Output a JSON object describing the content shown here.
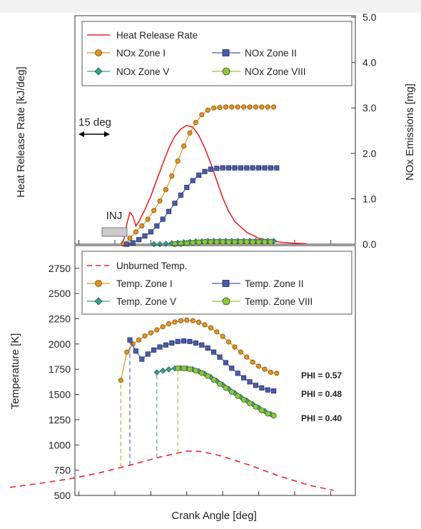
{
  "chart_data": [
    {
      "type": "line",
      "ylabel": "Heat Release Rate [kJ/deg]",
      "y2label": "NOx Emissions [mg]",
      "y2lim": [
        0,
        5.0
      ],
      "y2ticks": [
        "0.0",
        "1.0",
        "2.0",
        "3.0",
        "4.0",
        "5.0"
      ],
      "grid": false,
      "legend_position": "top",
      "annotations": {
        "interval": "15 deg",
        "injection": "INJ"
      },
      "series": [
        {
          "name": "Heat Release Rate",
          "axis": "left-unlabeled",
          "style": "solid",
          "color": "#e8242a",
          "x": [
            -8,
            -7,
            -6,
            -5,
            -4,
            -3,
            -2,
            0,
            2,
            4,
            6,
            8,
            10,
            12,
            14,
            16,
            18,
            20,
            22,
            24,
            26,
            28,
            30,
            34,
            38,
            42,
            46,
            50,
            54
          ],
          "y": [
            0,
            0.1,
            0.45,
            0.7,
            0.62,
            0.4,
            0.5,
            0.76,
            1.06,
            1.42,
            1.78,
            2.12,
            2.38,
            2.54,
            2.62,
            2.58,
            2.4,
            2.12,
            1.78,
            1.4,
            1.02,
            0.72,
            0.5,
            0.26,
            0.13,
            0.07,
            0.04,
            0.02,
            0.01
          ]
        },
        {
          "name": "NOx Zone I",
          "axis": "right",
          "marker": "circle",
          "color": "#e39320",
          "x": [
            -7,
            -5,
            -3,
            -1,
            1,
            3,
            5,
            7,
            9,
            11,
            13,
            15,
            17,
            19,
            21,
            23,
            25,
            27,
            29,
            31,
            33,
            35,
            37,
            39,
            41,
            43
          ],
          "y": [
            0.0,
            0.13,
            0.27,
            0.4,
            0.55,
            0.74,
            0.95,
            1.2,
            1.5,
            1.83,
            2.16,
            2.45,
            2.68,
            2.85,
            2.95,
            3.0,
            3.01,
            3.02,
            3.02,
            3.02,
            3.02,
            3.02,
            3.02,
            3.02,
            3.02,
            3.02
          ]
        },
        {
          "name": "NOx Zone II",
          "axis": "right",
          "marker": "square",
          "color": "#4a5ba8",
          "x": [
            -6,
            -4,
            -2,
            0,
            2,
            4,
            6,
            8,
            10,
            12,
            14,
            16,
            18,
            20,
            22,
            24,
            26,
            28,
            30,
            32,
            34,
            36,
            38,
            40,
            42,
            44
          ],
          "y": [
            0.0,
            0.03,
            0.1,
            0.18,
            0.27,
            0.4,
            0.55,
            0.72,
            0.9,
            1.08,
            1.25,
            1.4,
            1.52,
            1.6,
            1.65,
            1.67,
            1.68,
            1.68,
            1.68,
            1.68,
            1.68,
            1.68,
            1.68,
            1.68,
            1.68,
            1.68
          ]
        },
        {
          "name": "NOx Zone V",
          "axis": "right",
          "marker": "diamond",
          "color": "#3aa08c",
          "x": [
            3,
            5,
            7,
            9,
            11,
            13,
            15,
            17,
            19,
            21,
            23,
            25,
            27,
            29,
            31,
            33,
            35,
            37,
            39,
            41,
            43
          ],
          "y": [
            0.0,
            0.0,
            0.01,
            0.02,
            0.03,
            0.04,
            0.05,
            0.06,
            0.06,
            0.07,
            0.07,
            0.07,
            0.07,
            0.07,
            0.07,
            0.07,
            0.07,
            0.07,
            0.07,
            0.07,
            0.07
          ]
        },
        {
          "name": "NOx Zone VIII",
          "axis": "right",
          "marker": "circle-cross",
          "color": "#8dc63f",
          "x": [
            10,
            12,
            14,
            16,
            18,
            20,
            22,
            24,
            26,
            28,
            30,
            32,
            34,
            36,
            38,
            40,
            42
          ],
          "y": [
            0.0,
            0.01,
            0.02,
            0.03,
            0.04,
            0.05,
            0.05,
            0.05,
            0.05,
            0.05,
            0.05,
            0.05,
            0.05,
            0.05,
            0.05,
            0.05,
            0.05
          ]
        }
      ]
    },
    {
      "type": "line",
      "xlabel": "Crank Angle  [deg]",
      "ylabel": "Temperature [K]",
      "ylim": [
        500,
        2750
      ],
      "yticks": [
        "500",
        "750",
        "1000",
        "1250",
        "1500",
        "1750",
        "2000",
        "2250",
        "2500",
        "2750"
      ],
      "grid": false,
      "legend_position": "top",
      "annotations": [
        "PHI = 0.57",
        "PHI = 0.48",
        "PHI = 0.40"
      ],
      "series": [
        {
          "name": "Unburned Temp.",
          "style": "dashed",
          "color": "#e8242a",
          "x": [
            -45,
            -35,
            -25,
            -15,
            -5,
            5,
            11,
            14,
            19,
            25,
            35,
            45,
            55,
            63
          ],
          "y": [
            580,
            620,
            665,
            725,
            800,
            880,
            920,
            940,
            935,
            895,
            800,
            690,
            600,
            550
          ]
        },
        {
          "name": "Temp. Zone I",
          "marker": "circle",
          "color": "#e39320",
          "x": [
            -8,
            -6,
            -4,
            -2,
            0,
            2,
            4,
            6,
            8,
            10,
            12,
            14,
            16,
            18,
            20,
            22,
            24,
            26,
            28,
            30,
            32,
            34,
            36,
            38,
            40,
            42,
            44
          ],
          "y": [
            1640,
            1920,
            2000,
            2040,
            2080,
            2110,
            2140,
            2170,
            2200,
            2218,
            2230,
            2236,
            2230,
            2215,
            2190,
            2160,
            2120,
            2075,
            2020,
            1970,
            1920,
            1870,
            1820,
            1780,
            1750,
            1720,
            1710
          ]
        },
        {
          "name": "Temp. Zone II",
          "marker": "square",
          "color": "#4a5ba8",
          "x": [
            -5,
            -3,
            -1,
            1,
            3,
            5,
            7,
            9,
            11,
            13,
            15,
            17,
            19,
            21,
            23,
            25,
            27,
            29,
            31,
            33,
            35,
            37,
            39,
            41,
            43
          ],
          "y": [
            2040,
            1930,
            1850,
            1900,
            1940,
            1970,
            1990,
            2010,
            2025,
            2030,
            2025,
            2010,
            1990,
            1960,
            1920,
            1870,
            1815,
            1760,
            1710,
            1665,
            1625,
            1590,
            1565,
            1545,
            1535
          ]
        },
        {
          "name": "Temp. Zone V",
          "marker": "diamond",
          "color": "#3aa08c",
          "x": [
            4,
            6,
            8,
            10,
            12,
            14,
            16,
            18,
            20,
            22,
            24,
            26,
            28,
            30,
            32,
            34,
            36,
            38,
            40,
            42,
            43
          ],
          "y": [
            1720,
            1735,
            1748,
            1758,
            1762,
            1760,
            1750,
            1730,
            1705,
            1672,
            1635,
            1595,
            1555,
            1515,
            1475,
            1440,
            1405,
            1370,
            1335,
            1305,
            1290
          ]
        },
        {
          "name": "Temp. Zone VIII",
          "marker": "circle-cross",
          "color": "#8dc63f",
          "x": [
            11,
            13,
            15,
            17,
            19,
            21,
            23,
            25,
            27,
            29,
            31,
            33,
            35,
            37,
            39,
            41,
            43
          ],
          "y": [
            1760,
            1758,
            1750,
            1735,
            1712,
            1682,
            1645,
            1605,
            1565,
            1525,
            1485,
            1448,
            1412,
            1378,
            1342,
            1310,
            1290
          ]
        }
      ]
    }
  ]
}
